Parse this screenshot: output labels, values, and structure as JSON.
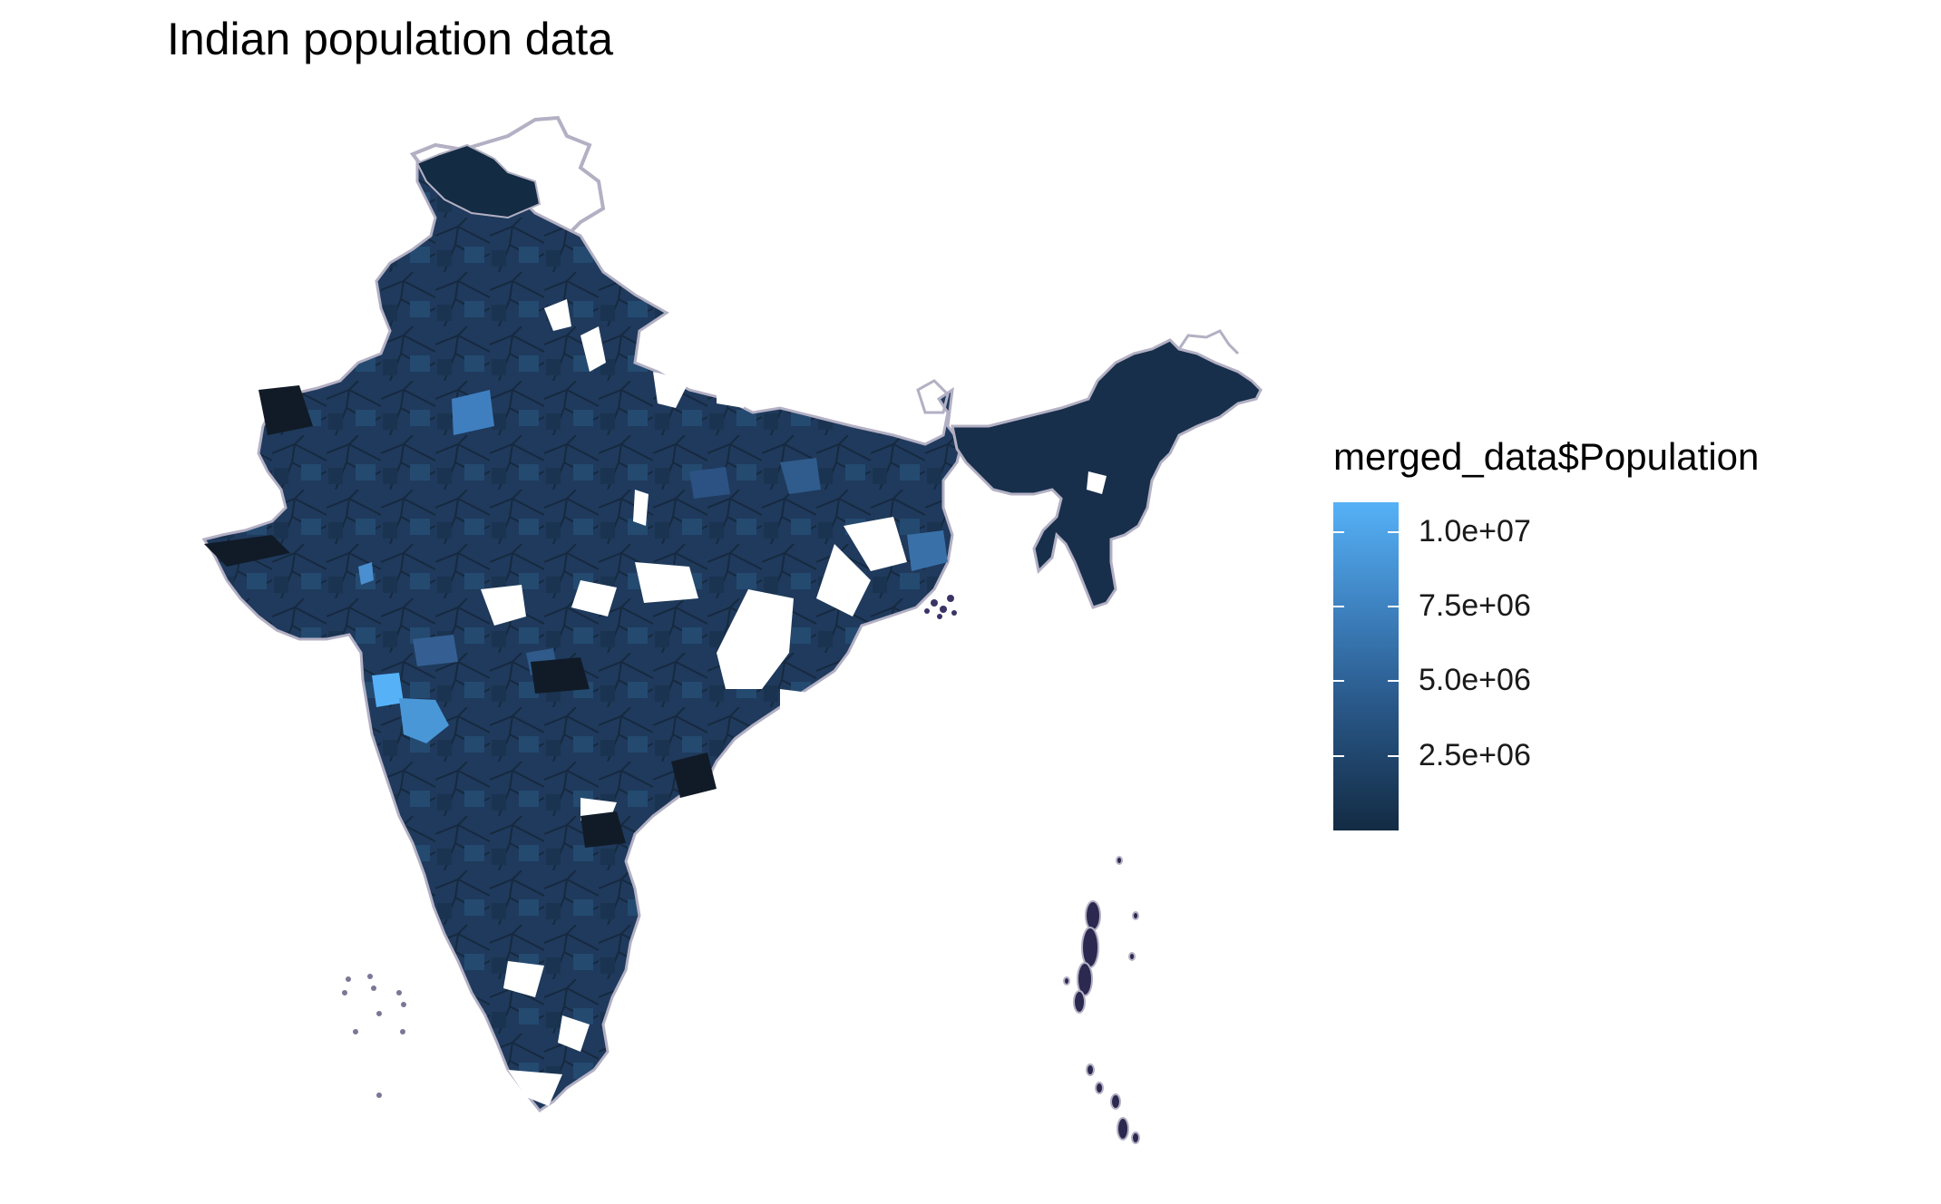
{
  "title": "Indian population data",
  "legend": {
    "title": "merged_data$Population",
    "scale": {
      "min": 0,
      "max": 11000000,
      "low_color": "#132B43",
      "high_color": "#56B1F7"
    },
    "breaks": [
      {
        "value": 10000000,
        "label": "1.0e+07"
      },
      {
        "value": 7500000,
        "label": "7.5e+06"
      },
      {
        "value": 5000000,
        "label": "5.0e+06"
      },
      {
        "value": 2500000,
        "label": "2.5e+06"
      }
    ]
  },
  "map": {
    "fill_color": "#1f3a5c",
    "border_color": "#b3b0c4"
  }
}
